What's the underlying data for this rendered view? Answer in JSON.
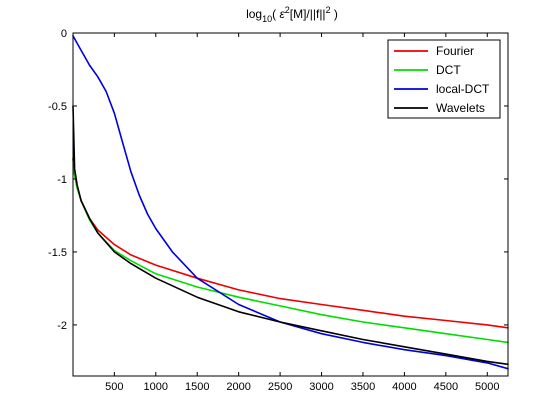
{
  "chart_data": {
    "type": "line",
    "title": {
      "prefix": "log",
      "prefix_sub": "10",
      "open": "( ",
      "expr_a": "ε",
      "expr_a_sup": "2",
      "expr_b": "[M]/||f||",
      "expr_b_sup": "2",
      "close": " )"
    },
    "xlabel": "",
    "ylabel": "",
    "xlim": [
      1,
      5250
    ],
    "ylim": [
      -2.35,
      0
    ],
    "x_ticks": [
      500,
      1000,
      1500,
      2000,
      2500,
      3000,
      3500,
      4000,
      4500,
      5000
    ],
    "y_ticks": [
      0,
      -0.5,
      -1,
      -1.5,
      -2
    ],
    "y_tick_labels": [
      "0",
      "-0.5",
      "-1",
      "-1.5",
      "-2"
    ],
    "grid": false,
    "legend": "top-right",
    "series": [
      {
        "name": "Fourier",
        "color": "#ee0000",
        "x": [
          1,
          20,
          50,
          100,
          200,
          300,
          500,
          700,
          1000,
          1500,
          2000,
          2500,
          3000,
          3500,
          4000,
          4500,
          5000,
          5250
        ],
        "y": [
          -0.86,
          -0.97,
          -1.06,
          -1.15,
          -1.27,
          -1.35,
          -1.45,
          -1.52,
          -1.59,
          -1.68,
          -1.76,
          -1.82,
          -1.86,
          -1.9,
          -1.94,
          -1.97,
          -2.0,
          -2.02
        ]
      },
      {
        "name": "DCT",
        "color": "#00dd00",
        "x": [
          1,
          20,
          50,
          100,
          200,
          300,
          500,
          700,
          1000,
          1500,
          2000,
          2500,
          3000,
          3500,
          4000,
          4500,
          5000,
          5250
        ],
        "y": [
          -0.86,
          -0.97,
          -1.06,
          -1.15,
          -1.28,
          -1.37,
          -1.49,
          -1.56,
          -1.65,
          -1.74,
          -1.81,
          -1.87,
          -1.93,
          -1.98,
          -2.02,
          -2.06,
          -2.1,
          -2.12
        ]
      },
      {
        "name": "local-DCT",
        "color": "#0000dd",
        "x": [
          1,
          100,
          200,
          300,
          400,
          500,
          600,
          700,
          800,
          900,
          1000,
          1200,
          1500,
          2000,
          2500,
          3000,
          3500,
          4000,
          4500,
          5000,
          5250
        ],
        "y": [
          -0.02,
          -0.12,
          -0.22,
          -0.3,
          -0.4,
          -0.55,
          -0.75,
          -0.95,
          -1.11,
          -1.24,
          -1.34,
          -1.5,
          -1.68,
          -1.86,
          -1.98,
          -2.06,
          -2.12,
          -2.17,
          -2.21,
          -2.26,
          -2.3
        ]
      },
      {
        "name": "Wavelets",
        "color": "#000000",
        "x": [
          1,
          20,
          50,
          100,
          200,
          300,
          500,
          700,
          1000,
          1500,
          2000,
          2500,
          3000,
          3500,
          4000,
          4500,
          5000,
          5250
        ],
        "y": [
          -0.5,
          -0.93,
          -1.04,
          -1.15,
          -1.27,
          -1.37,
          -1.5,
          -1.58,
          -1.68,
          -1.81,
          -1.91,
          -1.98,
          -2.04,
          -2.1,
          -2.15,
          -2.2,
          -2.25,
          -2.27
        ]
      }
    ]
  }
}
